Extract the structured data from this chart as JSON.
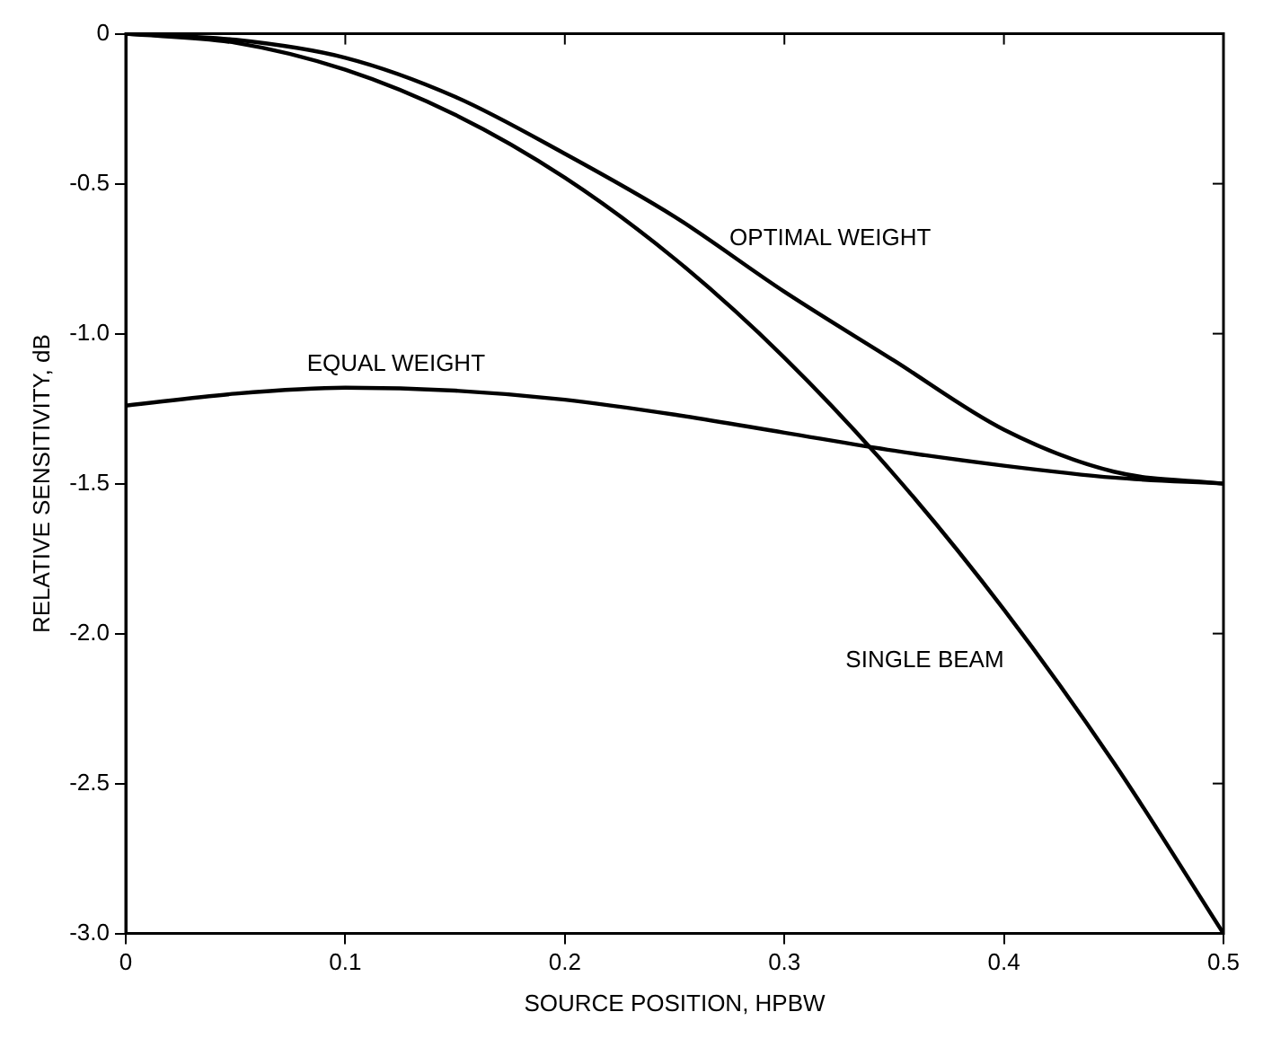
{
  "chart_data": {
    "type": "line",
    "xlabel": "SOURCE POSITION, HPBW",
    "ylabel": "RELATIVE SENSITIVITY, dB",
    "xlim": [
      0,
      0.5
    ],
    "xticks": [
      0,
      0.1,
      0.2,
      0.3,
      0.4,
      0.5
    ],
    "ylim": [
      -3,
      0
    ],
    "yticks": [
      0,
      -0.5,
      {
        "value": -1,
        "label": "-1.0"
      },
      -1.5,
      {
        "value": -2,
        "label": "-2.0"
      },
      -2.5,
      {
        "value": -3,
        "label": "-3.0"
      }
    ],
    "x": [
      0,
      0.05,
      0.1,
      0.15,
      0.2,
      0.25,
      0.3,
      0.35,
      0.4,
      0.45,
      0.5
    ],
    "series": [
      {
        "name": "OPTIMAL WEIGHT",
        "color": "#000000",
        "values": [
          0,
          -0.02,
          -0.08,
          -0.21,
          -0.4,
          -0.61,
          -0.86,
          -1.09,
          -1.32,
          -1.46,
          -1.5
        ]
      },
      {
        "name": "EQUAL WEIGHT",
        "color": "#000000",
        "values": [
          -1.24,
          -1.2,
          -1.18,
          -1.19,
          -1.22,
          -1.27,
          -1.33,
          -1.39,
          -1.44,
          -1.48,
          -1.5
        ]
      },
      {
        "name": "SINGLE BEAM",
        "color": "#000000",
        "values": [
          0,
          -0.03,
          -0.12,
          -0.27,
          -0.48,
          -0.75,
          -1.08,
          -1.47,
          -1.92,
          -2.43,
          -3.0
        ]
      }
    ],
    "grid": false,
    "legend": false,
    "marker": "none",
    "line_style": "solid"
  }
}
